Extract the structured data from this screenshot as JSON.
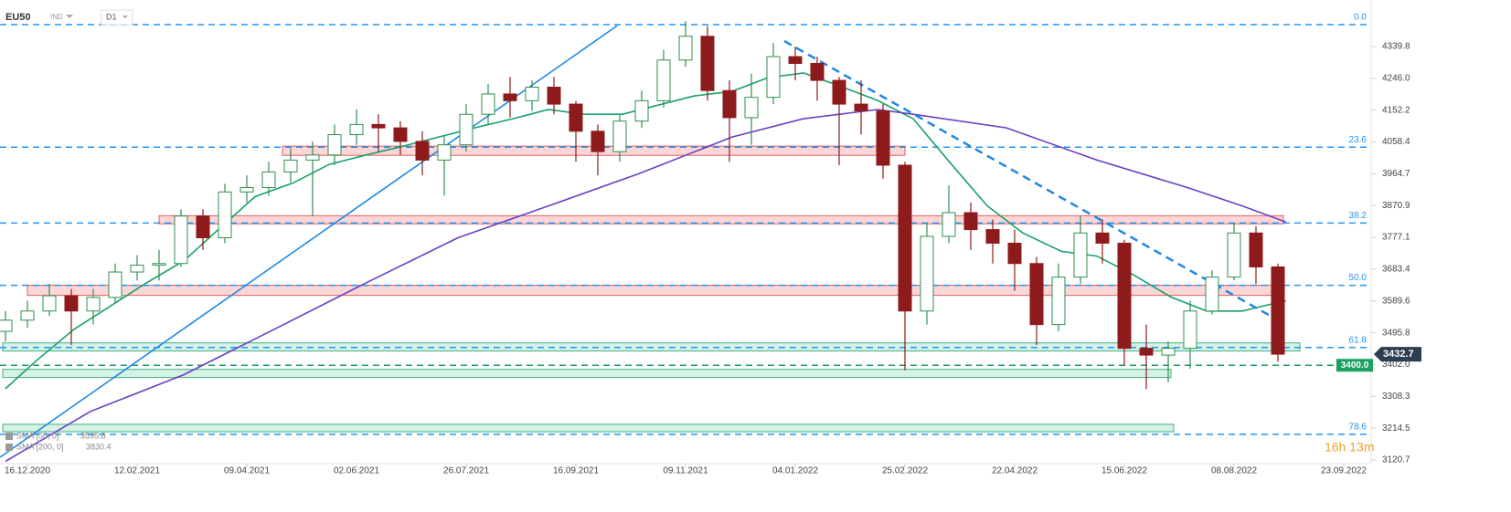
{
  "chart_data": {
    "type": "candlestick",
    "title": "EU50",
    "instrument_class": "IND",
    "timeframe": "D1",
    "countdown": "16h 13m",
    "xlim": [
      -10,
      490
    ],
    "ylim": [
      3110,
      4477
    ],
    "xticks": [
      {
        "value": 0,
        "label": "16.12.2020"
      },
      {
        "value": 40,
        "label": "12.02.2021"
      },
      {
        "value": 80,
        "label": "09.04.2021"
      },
      {
        "value": 120,
        "label": "02.06.2021"
      },
      {
        "value": 160,
        "label": "26.07.2021"
      },
      {
        "value": 200,
        "label": "16.09.2021"
      },
      {
        "value": 240,
        "label": "09.11.2021"
      },
      {
        "value": 280,
        "label": "04.01.2022"
      },
      {
        "value": 320,
        "label": "25.02.2022"
      },
      {
        "value": 360,
        "label": "22.04.2022"
      },
      {
        "value": 400,
        "label": "15.06.2022"
      },
      {
        "value": 440,
        "label": "08.08.2022"
      },
      {
        "value": 480,
        "label": "23.09.2022"
      }
    ],
    "yticks": [
      4339.8,
      {
        "value": 4246,
        "label": "4246.0"
      },
      4152.2,
      4058.4,
      3964.7,
      3870.9,
      3777.1,
      3683.4,
      3589.6,
      3495.8,
      {
        "value": 3402,
        "label": "3402.0"
      },
      3308.3,
      3214.5,
      3120.7
    ],
    "up_color": "#2f8f4f",
    "down_color": "#8e1b1b",
    "x": [
      -8,
      0,
      8,
      16,
      24,
      32,
      40,
      48,
      56,
      64,
      72,
      80,
      88,
      96,
      104,
      112,
      120,
      128,
      136,
      144,
      152,
      160,
      168,
      176,
      184,
      192,
      200,
      208,
      216,
      224,
      232,
      240,
      248,
      256,
      264,
      272,
      280,
      288,
      296,
      304,
      312,
      320,
      328,
      336,
      344,
      352,
      360,
      368,
      376,
      384,
      392,
      400,
      408,
      416,
      424,
      432,
      440,
      448,
      456
    ],
    "open": [
      3500,
      3533,
      3560,
      3605,
      3560,
      3600,
      3675,
      3695,
      3700,
      3840,
      3776,
      3911,
      3924,
      3970,
      4005,
      4020,
      4080,
      4110,
      4100,
      4060,
      4005,
      4050,
      4140,
      4200,
      4180,
      4220,
      4170,
      4090,
      4030,
      4120,
      4180,
      4300,
      4370,
      4210,
      4130,
      4190,
      4310,
      4290,
      4240,
      4170,
      4150,
      3990,
      3560,
      3780,
      3850,
      3800,
      3760,
      3700,
      3520,
      3660,
      3790,
      3760,
      3450,
      3430,
      3450,
      3560,
      3660,
      3790,
      3690
    ],
    "high": [
      3560,
      3590,
      3640,
      3625,
      3625,
      3700,
      3725,
      3740,
      3860,
      3860,
      3935,
      3960,
      4000,
      4040,
      4060,
      4110,
      4155,
      4140,
      4120,
      4090,
      4075,
      4170,
      4230,
      4250,
      4240,
      4250,
      4180,
      4110,
      4140,
      4210,
      4330,
      4415,
      4400,
      4240,
      4260,
      4350,
      4340,
      4310,
      4250,
      4240,
      4170,
      4000,
      3820,
      3930,
      3880,
      3830,
      3800,
      3720,
      3700,
      3840,
      3830,
      3770,
      3520,
      3470,
      3590,
      3680,
      3820,
      3810,
      3700
    ],
    "low": [
      3470,
      3510,
      3545,
      3460,
      3520,
      3585,
      3650,
      3650,
      3690,
      3740,
      3760,
      3880,
      3900,
      3940,
      3840,
      3990,
      4050,
      4030,
      4020,
      3960,
      3900,
      4030,
      4110,
      4130,
      4150,
      4140,
      4000,
      3960,
      4000,
      4100,
      4160,
      4280,
      4180,
      4000,
      4050,
      4170,
      4240,
      4180,
      3990,
      4080,
      3950,
      3385,
      3520,
      3760,
      3740,
      3700,
      3620,
      3460,
      3500,
      3640,
      3700,
      3400,
      3330,
      3350,
      3390,
      3550,
      3650,
      3640,
      3410
    ],
    "close": [
      3533,
      3560,
      3605,
      3560,
      3600,
      3675,
      3695,
      3700,
      3840,
      3776,
      3911,
      3924,
      3970,
      4005,
      4020,
      4080,
      4110,
      4100,
      4060,
      4005,
      4050,
      4140,
      4200,
      4180,
      4220,
      4170,
      4090,
      4030,
      4120,
      4180,
      4300,
      4370,
      4210,
      4130,
      4190,
      4310,
      4290,
      4240,
      4170,
      4150,
      3990,
      3560,
      3780,
      3850,
      3800,
      3760,
      3700,
      3520,
      3660,
      3790,
      3760,
      3450,
      3430,
      3450,
      3560,
      3660,
      3790,
      3690,
      3432.7
    ],
    "last_price": 3432.7,
    "marked_level": {
      "value": 3400,
      "label": "3400.0"
    },
    "series": [
      {
        "name": "SMA [50, 0]",
        "color": "#18a06a",
        "last_value": 3595.8,
        "x": [
          -8,
          3,
          17,
          30,
          43,
          57,
          70,
          83,
          97,
          110,
          123,
          137,
          150,
          163,
          177,
          190,
          203,
          217,
          230,
          243,
          257,
          270,
          283,
          297,
          310,
          323,
          337,
          350,
          363,
          377,
          390,
          403,
          417,
          430,
          443,
          457,
          459
        ],
        "values": [
          3331,
          3412,
          3506,
          3573,
          3641,
          3708,
          3803,
          3897,
          3938,
          3992,
          4019,
          4046,
          4073,
          4100,
          4127,
          4154,
          4140,
          4140,
          4167,
          4194,
          4208,
          4248,
          4262,
          4221,
          4181,
          4127,
          3992,
          3870,
          3790,
          3736,
          3722,
          3668,
          3601,
          3560,
          3560,
          3587,
          3590
        ]
      },
      {
        "name": "SMA [200, 0]",
        "color": "#6a3fc0",
        "last_value": 3830.4,
        "x": [
          -8,
          23,
          57,
          90,
          123,
          157,
          190,
          223,
          257,
          283,
          310,
          323,
          357,
          390,
          423,
          443,
          459
        ],
        "values": [
          3117,
          3264,
          3372,
          3506,
          3641,
          3776,
          3870,
          3965,
          4073,
          4127,
          4154,
          4140,
          4100,
          4005,
          3924,
          3870,
          3822
        ]
      }
    ],
    "fib_levels": [
      {
        "value": 4404.5,
        "label": "0.0"
      },
      {
        "value": 4043,
        "label": "23.6"
      },
      {
        "value": 3819.3,
        "label": "38.2"
      },
      {
        "value": 3635.9,
        "label": "50.0"
      },
      {
        "value": 3452.5,
        "label": "61.8"
      },
      {
        "value": 3196.3,
        "label": "78.6"
      }
    ],
    "zones": [
      {
        "kind": "resistance",
        "x": [
          93,
          320
        ],
        "y": [
          4019,
          4046
        ]
      },
      {
        "kind": "resistance",
        "x": [
          48,
          458
        ],
        "y": [
          3817,
          3841
        ]
      },
      {
        "kind": "resistance",
        "x": [
          0,
          454
        ],
        "y": [
          3606,
          3636
        ]
      },
      {
        "kind": "support",
        "x": [
          -9,
          464
        ],
        "y": [
          3442,
          3466
        ]
      },
      {
        "kind": "support",
        "x": [
          -9,
          417
        ],
        "y": [
          3364,
          3388
        ]
      },
      {
        "kind": "support",
        "x": [
          -9,
          418
        ],
        "y": [
          3204,
          3226
        ]
      }
    ],
    "trendlines": [
      {
        "style": "solid",
        "x": [
          -10,
          215
        ],
        "y": [
          3129,
          4401
        ]
      },
      {
        "style": "dashed",
        "x": [
          276,
          456
        ],
        "y": [
          4356,
          3533
        ]
      }
    ]
  }
}
